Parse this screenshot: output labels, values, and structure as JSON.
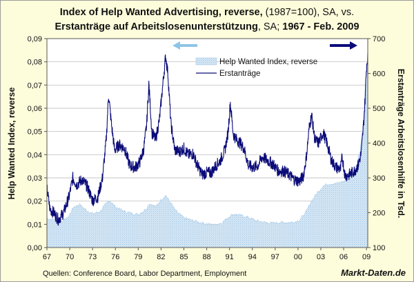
{
  "title": {
    "line1_bold": "Index of Help Wanted Advertising, reverse,",
    "line1_normal": " (1987=100), SA, vs.",
    "line2_bold": "Erstanträge auf Arbeitslosenunterstützung",
    "line2_normal": ", SA; ",
    "line2_bold2": "1967 -  Feb. 2009"
  },
  "source": "Quellen: Conference Board, Labor Department, Employment",
  "brand": "Markt-Daten.de",
  "colors": {
    "background": "#fdfddc",
    "plot_background": "#ffffff",
    "help_wanted_fill": "#c5dcef",
    "erstantraege_line": "#0a0a78",
    "arrow_left": "#8ec4e8",
    "arrow_right": "#0a0a78",
    "grid": "#b0b0b0"
  },
  "chart_data": {
    "type": "area+line",
    "title": "Index of Help Wanted Advertising, reverse, (1987=100), SA, vs. Erstanträge auf Arbeitslosenunterstützung, SA; 1967 - Feb. 2009",
    "x_tick_labels": [
      "67",
      "70",
      "73",
      "76",
      "79",
      "82",
      "85",
      "88",
      "91",
      "94",
      "97",
      "00",
      "03",
      "06",
      "09"
    ],
    "x_range": [
      1967,
      2009.17
    ],
    "y_left": {
      "label": "Help Wanted Index, reverse",
      "range": [
        0,
        0.09
      ],
      "tick_labels": [
        "0,00",
        "0,01",
        "0,02",
        "0,03",
        "0,04",
        "0,05",
        "0,06",
        "0,07",
        "0,08",
        "0,09"
      ]
    },
    "y_right": {
      "label": "Erstanträge Arbeitslosenhilfe in Tsd.",
      "range": [
        100,
        700
      ],
      "tick_labels": [
        "100",
        "200",
        "300",
        "400",
        "500",
        "600",
        "700"
      ]
    },
    "legend": {
      "position": "top-right",
      "entries": [
        "Help Wanted Index, reverse",
        "Erstanträge"
      ]
    },
    "grid": "horizontal",
    "series": [
      {
        "name": "Help Wanted Index, reverse",
        "axis": "left",
        "style": "area",
        "x": [
          1967.0,
          1968.0,
          1969.0,
          1969.8,
          1970.5,
          1971.3,
          1972.0,
          1973.0,
          1974.0,
          1974.8,
          1975.2,
          1976.0,
          1977.0,
          1978.0,
          1979.0,
          1980.0,
          1980.5,
          1981.3,
          1982.0,
          1982.6,
          1983.3,
          1984.0,
          1985.0,
          1986.0,
          1987.0,
          1988.0,
          1989.0,
          1990.0,
          1991.0,
          1991.6,
          1992.5,
          1993.5,
          1994.5,
          1995.5,
          1996.5,
          1997.5,
          1998.5,
          1999.5,
          2000.2,
          2001.0,
          2001.7,
          2002.5,
          2003.3,
          2004.0,
          2005.0,
          2006.0,
          2006.7,
          2007.3,
          2007.9,
          2008.3,
          2008.6,
          2008.9,
          2009.17
        ],
        "values": [
          0.0125,
          0.012,
          0.0115,
          0.013,
          0.0175,
          0.0185,
          0.0165,
          0.0145,
          0.0155,
          0.019,
          0.0205,
          0.0175,
          0.0158,
          0.0148,
          0.0142,
          0.0165,
          0.019,
          0.0175,
          0.0205,
          0.0225,
          0.019,
          0.0155,
          0.0128,
          0.0118,
          0.0109,
          0.0102,
          0.0097,
          0.0107,
          0.0135,
          0.0145,
          0.0138,
          0.013,
          0.0115,
          0.011,
          0.0105,
          0.0108,
          0.0108,
          0.011,
          0.0118,
          0.015,
          0.0195,
          0.0235,
          0.0265,
          0.0275,
          0.0275,
          0.0285,
          0.03,
          0.033,
          0.038,
          0.045,
          0.052,
          0.062,
          0.081
        ]
      },
      {
        "name": "Erstanträge",
        "axis": "right",
        "style": "line",
        "x": [
          1967.0,
          1967.4,
          1967.9,
          1968.5,
          1969.2,
          1969.9,
          1970.4,
          1970.9,
          1971.6,
          1972.3,
          1973.0,
          1973.7,
          1974.3,
          1974.8,
          1975.1,
          1975.5,
          1975.9,
          1976.5,
          1977.2,
          1977.9,
          1978.6,
          1979.2,
          1979.7,
          1980.1,
          1980.4,
          1980.8,
          1981.3,
          1981.8,
          1982.2,
          1982.6,
          1982.9,
          1983.3,
          1983.8,
          1984.4,
          1985.0,
          1985.6,
          1986.2,
          1986.8,
          1987.4,
          1988.0,
          1988.6,
          1989.2,
          1989.8,
          1990.4,
          1990.8,
          1991.1,
          1991.5,
          1991.9,
          1992.4,
          1992.9,
          1993.5,
          1994.1,
          1994.7,
          1995.3,
          1996.0,
          1996.7,
          1997.4,
          1998.1,
          1998.8,
          1999.5,
          2000.2,
          2000.7,
          2001.1,
          2001.5,
          2001.8,
          2002.2,
          2002.7,
          2003.3,
          2003.8,
          2004.4,
          2005.0,
          2005.6,
          2005.8,
          2006.2,
          2006.8,
          2007.4,
          2007.9,
          2008.3,
          2008.6,
          2008.8,
          2009.0,
          2009.17
        ],
        "values": [
          270,
          210,
          200,
          180,
          200,
          245,
          300,
          280,
          295,
          275,
          235,
          245,
          300,
          410,
          540,
          450,
          380,
          395,
          385,
          335,
          330,
          345,
          380,
          450,
          570,
          430,
          410,
          470,
          560,
          650,
          600,
          455,
          380,
          375,
          385,
          365,
          370,
          335,
          310,
          315,
          315,
          335,
          350,
          380,
          430,
          515,
          425,
          410,
          400,
          385,
          335,
          330,
          335,
          360,
          350,
          340,
          320,
          320,
          310,
          295,
          290,
          305,
          360,
          450,
          480,
          410,
          400,
          430,
          400,
          350,
          330,
          325,
          360,
          305,
          310,
          320,
          335,
          370,
          450,
          520,
          620,
          650
        ]
      }
    ]
  }
}
